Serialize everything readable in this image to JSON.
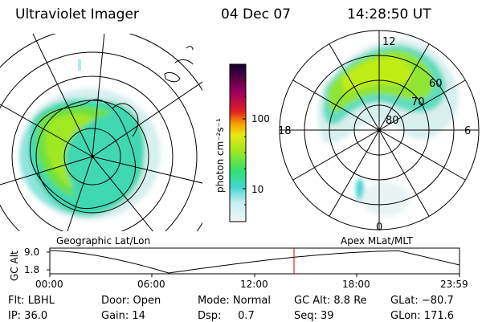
{
  "header": {
    "instrument": "Ultraviolet Imager",
    "date": "04 Dec 07",
    "time": "14:28:50 UT"
  },
  "left_panel": {
    "caption": "Geographic Lat/Lon"
  },
  "right_panel": {
    "caption": "Apex MLat/MLT",
    "mlt_labels": {
      "top": "12",
      "left": "18",
      "right": "6",
      "bottom": "0"
    },
    "lat_labels": [
      "60",
      "70",
      "80"
    ]
  },
  "colorbar": {
    "unit_label": "photon cm⁻²s⁻¹",
    "tick_labels": [
      "100",
      "10"
    ],
    "colors": [
      "#e8f2f2",
      "#40d8d0",
      "#30e070",
      "#a0e820",
      "#e8e810",
      "#f8a000",
      "#e02020",
      "#a00060",
      "#100030"
    ]
  },
  "altitude_plot": {
    "ylabel": "GC Alt",
    "y_ticks": [
      "9.0",
      "1.8"
    ],
    "x_ticks": [
      "00:00",
      "06:00",
      "12:00",
      "18:00",
      "23:59"
    ],
    "current_marker_color": "#cc0000"
  },
  "info": {
    "row1": [
      "Flt: LBHL",
      "Door: Open",
      "Mode: Normal",
      "GC Alt: 8.8 Re",
      "GLat: −80.7"
    ],
    "row2": [
      "IP: 36.0",
      "Gain: 14",
      "Dsp:     0.7",
      "Seq: 39",
      "GLon: 171.6"
    ]
  }
}
